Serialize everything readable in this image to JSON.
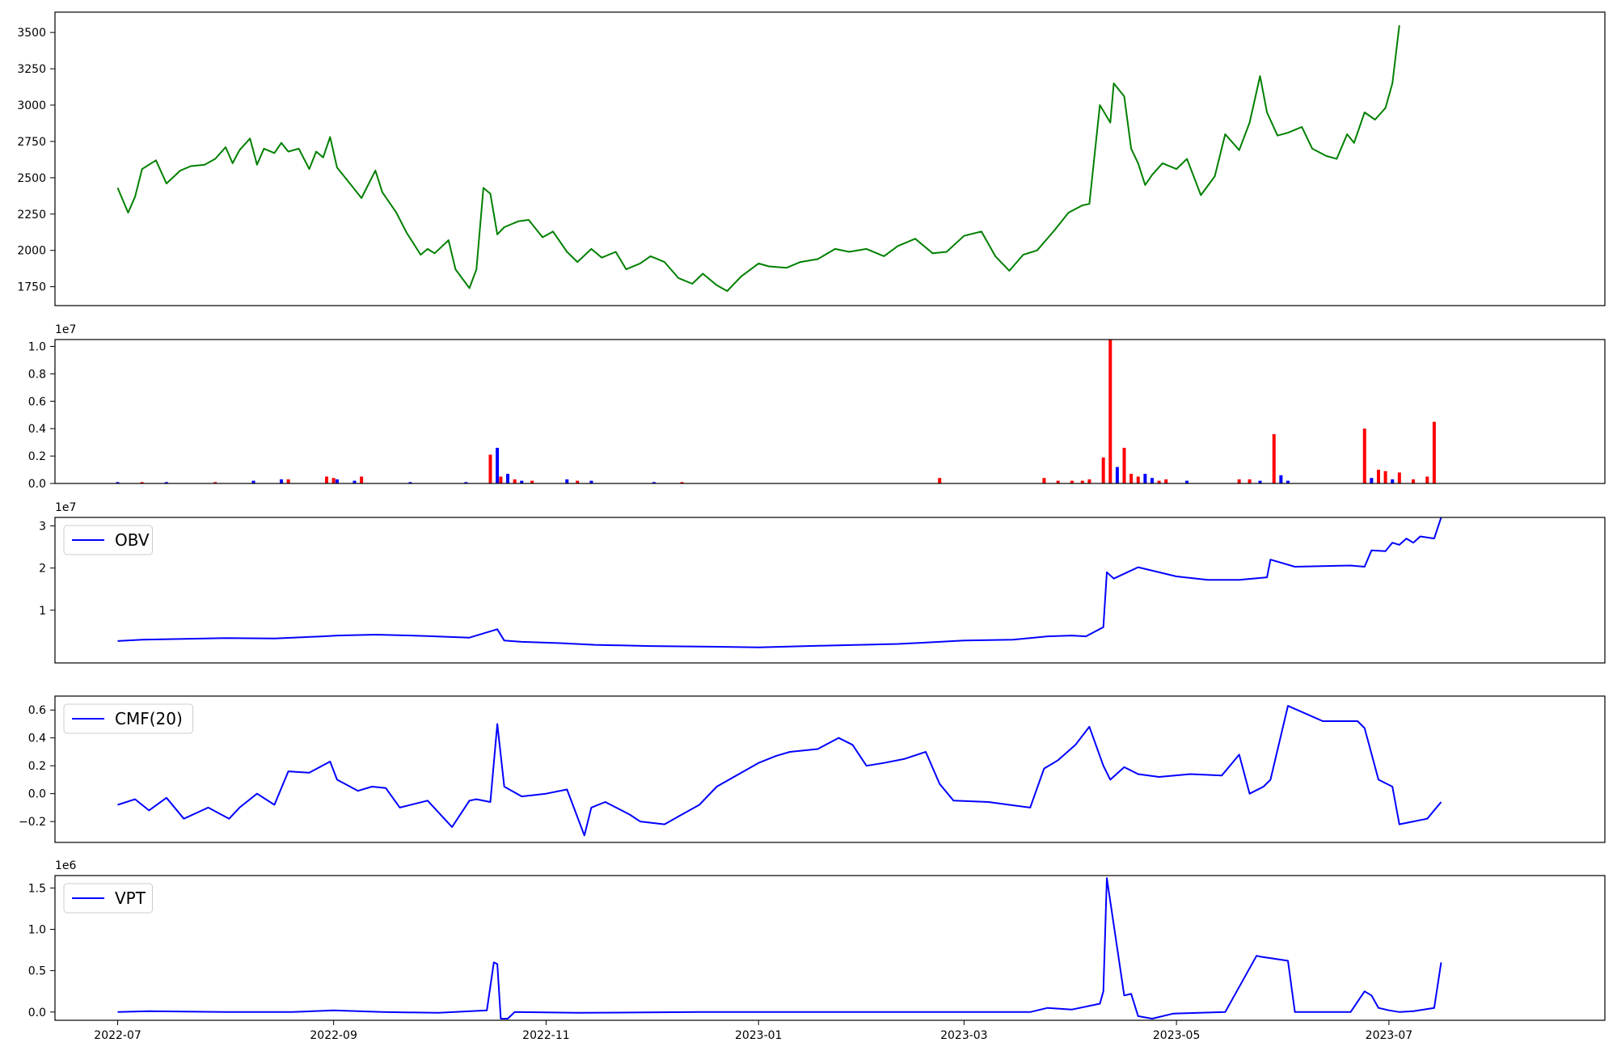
{
  "chart_data": [
    {
      "type": "line",
      "panel": "price",
      "ylim": [
        1620,
        3640
      ],
      "yticks": [
        "1750",
        "2000",
        "2250",
        "2500",
        "2750",
        "3000",
        "3250",
        "3500"
      ],
      "color": "#008000",
      "series": [
        {
          "x": [
            "2022-07-01",
            "2022-07-04",
            "2022-07-06",
            "2022-07-08",
            "2022-07-12",
            "2022-07-15",
            "2022-07-19",
            "2022-07-22",
            "2022-07-26",
            "2022-07-29",
            "2022-08-01",
            "2022-08-03",
            "2022-08-05",
            "2022-08-08",
            "2022-08-10",
            "2022-08-12",
            "2022-08-15",
            "2022-08-17",
            "2022-08-19",
            "2022-08-22",
            "2022-08-25",
            "2022-08-27",
            "2022-08-29",
            "2022-08-31",
            "2022-09-02",
            "2022-09-06",
            "2022-09-09",
            "2022-09-13",
            "2022-09-15",
            "2022-09-19",
            "2022-09-22",
            "2022-09-26",
            "2022-09-28",
            "2022-09-30",
            "2022-10-04",
            "2022-10-06",
            "2022-10-10",
            "2022-10-12",
            "2022-10-14",
            "2022-10-16",
            "2022-10-18",
            "2022-10-20",
            "2022-10-24",
            "2022-10-27",
            "2022-10-31",
            "2022-11-03",
            "2022-11-07",
            "2022-11-10",
            "2022-11-14",
            "2022-11-17",
            "2022-11-21",
            "2022-11-24",
            "2022-11-28",
            "2022-12-01",
            "2022-12-05",
            "2022-12-09",
            "2022-12-13",
            "2022-12-16",
            "2022-12-20",
            "2022-12-23",
            "2022-12-27",
            "2023-01-01",
            "2023-01-04",
            "2023-01-09",
            "2023-01-13",
            "2023-01-18",
            "2023-01-23",
            "2023-01-27",
            "2023-02-01",
            "2023-02-06",
            "2023-02-10",
            "2023-02-15",
            "2023-02-20",
            "2023-02-24",
            "2023-03-01",
            "2023-03-06",
            "2023-03-10",
            "2023-03-14",
            "2023-03-18",
            "2023-03-22",
            "2023-03-27",
            "2023-03-31",
            "2023-04-04",
            "2023-04-06",
            "2023-04-09",
            "2023-04-12",
            "2023-04-13",
            "2023-04-16",
            "2023-04-18",
            "2023-04-20",
            "2023-04-22",
            "2023-04-24",
            "2023-04-27",
            "2023-05-01",
            "2023-05-04",
            "2023-05-08",
            "2023-05-12",
            "2023-05-15",
            "2023-05-19",
            "2023-05-22",
            "2023-05-25",
            "2023-05-27",
            "2023-05-30",
            "2023-06-02",
            "2023-06-06",
            "2023-06-09",
            "2023-06-13",
            "2023-06-16",
            "2023-06-19",
            "2023-06-21",
            "2023-06-24",
            "2023-06-27",
            "2023-06-30",
            "2023-07-02",
            "2023-07-04"
          ],
          "values": [
            2430,
            2260,
            2370,
            2560,
            2620,
            2460,
            2550,
            2580,
            2590,
            2630,
            2710,
            2600,
            2690,
            2770,
            2590,
            2700,
            2670,
            2740,
            2680,
            2700,
            2560,
            2680,
            2640,
            2780,
            2570,
            2450,
            2360,
            2550,
            2400,
            2260,
            2120,
            1970,
            2010,
            1980,
            2070,
            1870,
            1740,
            1870,
            2430,
            2390,
            2110,
            2160,
            2200,
            2210,
            2090,
            2130,
            1990,
            1920,
            2010,
            1950,
            1990,
            1870,
            1910,
            1960,
            1920,
            1810,
            1770,
            1840,
            1760,
            1720,
            1820,
            1910,
            1890,
            1880,
            1920,
            1940,
            2010,
            1990,
            2010,
            1960,
            2030,
            2080,
            1980,
            1990,
            2100,
            2130,
            1960,
            1860,
            1970,
            2000,
            2140,
            2260,
            2310,
            2320,
            3000,
            2880,
            3150,
            3060,
            2700,
            2600,
            2450,
            2520,
            2600,
            2560,
            2630,
            2380,
            2510,
            2800,
            2690,
            2880,
            3200,
            2950,
            2790,
            2810,
            2850,
            2700,
            2650,
            2630,
            2800,
            2740,
            2950,
            2900,
            2980,
            3150,
            3550
          ]
        }
      ]
    },
    {
      "type": "bar",
      "panel": "volume",
      "exponent_label": "1e7",
      "ylim": [
        0,
        1.05
      ],
      "yticks": [
        "0.0",
        "0.2",
        "0.4",
        "0.6",
        "0.8",
        "1.0"
      ],
      "up_color": "#ff0000",
      "down_color": "#0000ff",
      "bars": [
        [
          "2022-07-01",
          0.01,
          "down"
        ],
        [
          "2022-07-08",
          0.01,
          "up"
        ],
        [
          "2022-07-15",
          0.01,
          "down"
        ],
        [
          "2022-07-29",
          0.01,
          "up"
        ],
        [
          "2022-08-09",
          0.02,
          "down"
        ],
        [
          "2022-08-17",
          0.03,
          "down"
        ],
        [
          "2022-08-19",
          0.03,
          "up"
        ],
        [
          "2022-08-30",
          0.05,
          "up"
        ],
        [
          "2022-09-01",
          0.04,
          "up"
        ],
        [
          "2022-09-02",
          0.03,
          "down"
        ],
        [
          "2022-09-07",
          0.02,
          "down"
        ],
        [
          "2022-09-09",
          0.05,
          "up"
        ],
        [
          "2022-09-23",
          0.01,
          "down"
        ],
        [
          "2022-10-09",
          0.01,
          "down"
        ],
        [
          "2022-10-16",
          0.21,
          "up"
        ],
        [
          "2022-10-18",
          0.26,
          "down"
        ],
        [
          "2022-10-19",
          0.05,
          "up"
        ],
        [
          "2022-10-21",
          0.07,
          "down"
        ],
        [
          "2022-10-23",
          0.03,
          "up"
        ],
        [
          "2022-10-25",
          0.02,
          "down"
        ],
        [
          "2022-10-28",
          0.02,
          "up"
        ],
        [
          "2022-11-07",
          0.03,
          "down"
        ],
        [
          "2022-11-10",
          0.02,
          "up"
        ],
        [
          "2022-11-14",
          0.02,
          "down"
        ],
        [
          "2022-12-02",
          0.01,
          "down"
        ],
        [
          "2022-12-10",
          0.01,
          "up"
        ],
        [
          "2023-02-22",
          0.04,
          "up"
        ],
        [
          "2023-03-24",
          0.04,
          "up"
        ],
        [
          "2023-03-28",
          0.02,
          "up"
        ],
        [
          "2023-04-01",
          0.02,
          "up"
        ],
        [
          "2023-04-04",
          0.02,
          "up"
        ],
        [
          "2023-04-06",
          0.03,
          "up"
        ],
        [
          "2023-04-10",
          0.19,
          "up"
        ],
        [
          "2023-04-12",
          1.05,
          "up"
        ],
        [
          "2023-04-14",
          0.12,
          "down"
        ],
        [
          "2023-04-16",
          0.26,
          "up"
        ],
        [
          "2023-04-18",
          0.07,
          "up"
        ],
        [
          "2023-04-20",
          0.05,
          "up"
        ],
        [
          "2023-04-22",
          0.07,
          "down"
        ],
        [
          "2023-04-24",
          0.04,
          "down"
        ],
        [
          "2023-04-26",
          0.02,
          "up"
        ],
        [
          "2023-04-28",
          0.03,
          "up"
        ],
        [
          "2023-05-04",
          0.02,
          "down"
        ],
        [
          "2023-05-19",
          0.03,
          "up"
        ],
        [
          "2023-05-22",
          0.03,
          "up"
        ],
        [
          "2023-05-25",
          0.02,
          "down"
        ],
        [
          "2023-05-29",
          0.36,
          "up"
        ],
        [
          "2023-05-31",
          0.06,
          "down"
        ],
        [
          "2023-06-02",
          0.02,
          "down"
        ],
        [
          "2023-06-24",
          0.4,
          "up"
        ],
        [
          "2023-06-26",
          0.04,
          "down"
        ],
        [
          "2023-06-28",
          0.1,
          "up"
        ],
        [
          "2023-06-30",
          0.09,
          "up"
        ],
        [
          "2023-07-02",
          0.03,
          "down"
        ],
        [
          "2023-07-04",
          0.08,
          "up"
        ],
        [
          "2023-07-08",
          0.03,
          "up"
        ],
        [
          "2023-07-12",
          0.05,
          "up"
        ],
        [
          "2023-07-14",
          0.45,
          "up"
        ]
      ]
    },
    {
      "type": "line",
      "panel": "obv",
      "exponent_label": "1e7",
      "legend": "OBV",
      "ylim": [
        -0.25,
        3.2
      ],
      "yticks": [
        "1",
        "2",
        "3"
      ],
      "color": "#0000ff",
      "series": [
        {
          "name": "OBV",
          "x": [
            "2022-07-01",
            "2022-07-08",
            "2022-07-20",
            "2022-08-01",
            "2022-08-15",
            "2022-08-29",
            "2022-09-02",
            "2022-09-13",
            "2022-09-27",
            "2022-10-10",
            "2022-10-18",
            "2022-10-20",
            "2022-10-25",
            "2022-11-05",
            "2022-11-15",
            "2022-12-01",
            "2022-12-15",
            "2023-01-01",
            "2023-01-20",
            "2023-02-10",
            "2023-02-22",
            "2023-03-01",
            "2023-03-15",
            "2023-03-25",
            "2023-04-01",
            "2023-04-05",
            "2023-04-10",
            "2023-04-11",
            "2023-04-13",
            "2023-04-20",
            "2023-05-01",
            "2023-05-10",
            "2023-05-19",
            "2023-05-27",
            "2023-05-28",
            "2023-06-04",
            "2023-06-20",
            "2023-06-24",
            "2023-06-26",
            "2023-06-30",
            "2023-07-02",
            "2023-07-04",
            "2023-07-06",
            "2023-07-08",
            "2023-07-10",
            "2023-07-14",
            "2023-07-16"
          ],
          "values": [
            0.27,
            0.3,
            0.32,
            0.34,
            0.33,
            0.38,
            0.4,
            0.42,
            0.39,
            0.35,
            0.55,
            0.28,
            0.25,
            0.22,
            0.18,
            0.15,
            0.14,
            0.12,
            0.16,
            0.2,
            0.25,
            0.28,
            0.3,
            0.38,
            0.4,
            0.38,
            0.6,
            1.9,
            1.75,
            2.02,
            1.8,
            1.72,
            1.72,
            1.78,
            2.2,
            2.03,
            2.06,
            2.03,
            2.42,
            2.4,
            2.6,
            2.55,
            2.7,
            2.6,
            2.75,
            2.7,
            3.2
          ]
        }
      ]
    },
    {
      "type": "line",
      "panel": "cmf",
      "legend": "CMF(20)",
      "ylim": [
        -0.35,
        0.7
      ],
      "yticks": [
        "−0.2",
        "0.0",
        "0.2",
        "0.4",
        "0.6"
      ],
      "color": "#0000ff",
      "series": [
        {
          "name": "CMF(20)",
          "x": [
            "2022-07-01",
            "2022-07-06",
            "2022-07-10",
            "2022-07-15",
            "2022-07-20",
            "2022-07-27",
            "2022-08-02",
            "2022-08-05",
            "2022-08-10",
            "2022-08-15",
            "2022-08-19",
            "2022-08-25",
            "2022-08-31",
            "2022-09-02",
            "2022-09-08",
            "2022-09-12",
            "2022-09-16",
            "2022-09-20",
            "2022-09-28",
            "2022-10-05",
            "2022-10-10",
            "2022-10-12",
            "2022-10-16",
            "2022-10-18",
            "2022-10-20",
            "2022-10-25",
            "2022-11-01",
            "2022-11-07",
            "2022-11-12",
            "2022-11-14",
            "2022-11-18",
            "2022-11-25",
            "2022-11-28",
            "2022-12-05",
            "2022-12-10",
            "2022-12-15",
            "2022-12-20",
            "2023-01-01",
            "2023-01-06",
            "2023-01-10",
            "2023-01-18",
            "2023-01-24",
            "2023-01-28",
            "2023-02-01",
            "2023-02-06",
            "2023-02-12",
            "2023-02-18",
            "2023-02-22",
            "2023-02-26",
            "2023-03-08",
            "2023-03-14",
            "2023-03-20",
            "2023-03-24",
            "2023-03-28",
            "2023-04-02",
            "2023-04-06",
            "2023-04-10",
            "2023-04-12",
            "2023-04-16",
            "2023-04-20",
            "2023-04-26",
            "2023-05-05",
            "2023-05-14",
            "2023-05-19",
            "2023-05-22",
            "2023-05-26",
            "2023-05-28",
            "2023-06-02",
            "2023-06-12",
            "2023-06-22",
            "2023-06-24",
            "2023-06-28",
            "2023-07-02",
            "2023-07-04",
            "2023-07-08",
            "2023-07-12",
            "2023-07-16"
          ],
          "values": [
            -0.08,
            -0.04,
            -0.12,
            -0.03,
            -0.18,
            -0.1,
            -0.18,
            -0.1,
            0.0,
            -0.08,
            0.16,
            0.15,
            0.23,
            0.1,
            0.02,
            0.05,
            0.04,
            -0.1,
            -0.05,
            -0.24,
            -0.05,
            -0.04,
            -0.06,
            0.5,
            0.05,
            -0.02,
            0.0,
            0.03,
            -0.3,
            -0.1,
            -0.06,
            -0.15,
            -0.2,
            -0.22,
            -0.15,
            -0.08,
            0.05,
            0.22,
            0.27,
            0.3,
            0.32,
            0.4,
            0.35,
            0.2,
            0.22,
            0.25,
            0.3,
            0.07,
            -0.05,
            -0.06,
            -0.08,
            -0.1,
            0.18,
            0.24,
            0.35,
            0.48,
            0.2,
            0.1,
            0.19,
            0.14,
            0.12,
            0.14,
            0.13,
            0.28,
            0.0,
            0.05,
            0.1,
            0.63,
            0.52,
            0.52,
            0.47,
            0.1,
            0.05,
            -0.22,
            -0.2,
            -0.18,
            -0.06
          ]
        }
      ]
    },
    {
      "type": "line",
      "panel": "vpt",
      "exponent_label": "1e6",
      "legend": "VPT",
      "ylim": [
        -0.1,
        1.65
      ],
      "yticks": [
        "0.0",
        "0.5",
        "1.0",
        "1.5"
      ],
      "color": "#0000ff",
      "xticks": [
        "2022-07",
        "2022-09",
        "2022-11",
        "2023-01",
        "2023-03",
        "2023-05",
        "2023-07"
      ],
      "xlim": [
        "2022-06-13",
        "2023-09-01"
      ],
      "series": [
        {
          "name": "VPT",
          "x": [
            "2022-07-01",
            "2022-07-10",
            "2022-08-01",
            "2022-08-20",
            "2022-09-01",
            "2022-09-15",
            "2022-10-01",
            "2022-10-15",
            "2022-10-17",
            "2022-10-18",
            "2022-10-19",
            "2022-10-21",
            "2022-10-23",
            "2022-11-10",
            "2022-12-15",
            "2023-02-01",
            "2023-03-20",
            "2023-03-25",
            "2023-04-01",
            "2023-04-09",
            "2023-04-10",
            "2023-04-11",
            "2023-04-16",
            "2023-04-18",
            "2023-04-20",
            "2023-04-24",
            "2023-04-30",
            "2023-05-15",
            "2023-05-24",
            "2023-05-25",
            "2023-06-02",
            "2023-06-04",
            "2023-06-20",
            "2023-06-24",
            "2023-06-26",
            "2023-06-28",
            "2023-07-01",
            "2023-07-04",
            "2023-07-08",
            "2023-07-14",
            "2023-07-16"
          ],
          "values": [
            0.0,
            0.01,
            0.0,
            0.0,
            0.02,
            0.0,
            -0.01,
            0.02,
            0.6,
            0.58,
            -0.08,
            -0.08,
            0.0,
            -0.01,
            0.0,
            0.0,
            0.0,
            0.05,
            0.03,
            0.1,
            0.25,
            1.62,
            0.2,
            0.22,
            -0.05,
            -0.08,
            -0.02,
            0.0,
            0.68,
            0.67,
            0.62,
            0.0,
            0.0,
            0.25,
            0.2,
            0.05,
            0.02,
            0.0,
            0.01,
            0.05,
            0.6
          ]
        }
      ]
    }
  ]
}
